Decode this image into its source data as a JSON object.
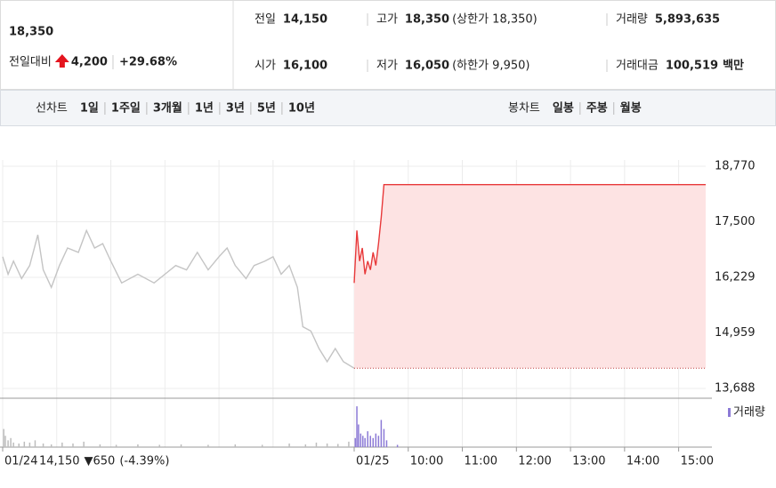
{
  "quote": {
    "price": "18,350",
    "change_label": "전일대비",
    "change": "4,200",
    "rate": "+29.68%",
    "rows": [
      [
        {
          "label": "전일",
          "value": "14,150"
        },
        {
          "label": "고가",
          "value": "18,350",
          "note": "(상한가 18,350)",
          "color": "#e4141e"
        },
        {
          "label": "거래량",
          "value": "5,893,635"
        }
      ],
      [
        {
          "label": "시가",
          "value": "16,100",
          "color": "#e4141e"
        },
        {
          "label": "저가",
          "value": "16,050",
          "note": "(하한가 9,950)",
          "color": "#e4141e"
        },
        {
          "label": "거래대금",
          "value": "100,519",
          "unit": "백만"
        }
      ]
    ]
  },
  "toolbar": {
    "line_label": "선차트",
    "line_options": [
      "1일",
      "1주일",
      "3개월",
      "1년",
      "3년",
      "5년",
      "10년"
    ],
    "active": 0,
    "candle_label": "봉차트",
    "candle_options": [
      "일봉",
      "주봉",
      "월봉"
    ]
  },
  "chart_data": {
    "type": "line",
    "xlim": [
      0,
      13
    ],
    "xticks": [
      {
        "value": 0,
        "label": "01/24"
      },
      {
        "value": 6.5,
        "label": "01/25"
      },
      {
        "value": 7.5,
        "label": "10:00"
      },
      {
        "value": 8.5,
        "label": "11:00"
      },
      {
        "value": 9.5,
        "label": "12:00"
      },
      {
        "value": 10.5,
        "label": "13:00"
      },
      {
        "value": 11.5,
        "label": "14:00"
      },
      {
        "value": 12.5,
        "label": "15:00"
      }
    ],
    "xgrid": [
      1,
      2,
      3,
      4,
      5
    ],
    "ylim": [
      13688,
      18770
    ],
    "yticks": [
      {
        "value": 18770,
        "label": "18,770"
      },
      {
        "value": 17500,
        "label": "17,500"
      },
      {
        "value": 16229,
        "label": "16,229"
      },
      {
        "value": 14959,
        "label": "14,959"
      },
      {
        "value": 13688,
        "label": "13,688"
      }
    ],
    "grid": true,
    "baseline": 14150,
    "series": [
      {
        "color": "#c4c4c4",
        "x": [
          0,
          0.1,
          0.2,
          0.35,
          0.5,
          0.65,
          0.75,
          0.9,
          1.05,
          1.2,
          1.4,
          1.55,
          1.7,
          1.85,
          2.0,
          2.2,
          2.5,
          2.8,
          3.0,
          3.2,
          3.4,
          3.6,
          3.8,
          4.0,
          4.15,
          4.3,
          4.5,
          4.65,
          4.85,
          5.0,
          5.15,
          5.3,
          5.45,
          5.55,
          5.7,
          5.85,
          6.0,
          6.15,
          6.3,
          6.5
        ],
        "values": [
          16700,
          16300,
          16600,
          16200,
          16500,
          17200,
          16400,
          16000,
          16500,
          16900,
          16800,
          17300,
          16900,
          17000,
          16600,
          16100,
          16300,
          16100,
          16300,
          16500,
          16400,
          16800,
          16400,
          16700,
          16900,
          16500,
          16200,
          16500,
          16600,
          16700,
          16300,
          16500,
          16000,
          15100,
          15000,
          14600,
          14300,
          14600,
          14300,
          14150
        ]
      },
      {
        "color": "#e8393a",
        "fill": "#fde3e3",
        "x": [
          6.5,
          6.55,
          6.6,
          6.65,
          6.7,
          6.75,
          6.8,
          6.85,
          6.9,
          6.95,
          7.0,
          7.05,
          13.0
        ],
        "values": [
          16100,
          17300,
          16600,
          16900,
          16300,
          16600,
          16400,
          16800,
          16500,
          17000,
          17600,
          18350,
          18350
        ]
      }
    ],
    "volume": {
      "name": "거래량",
      "ylim": [
        0,
        100
      ],
      "series": [
        {
          "color": "#bdbdbd",
          "x": [
            0.02,
            0.05,
            0.1,
            0.15,
            0.2,
            0.3,
            0.4,
            0.5,
            0.6,
            0.75,
            0.9,
            1.1,
            1.3,
            1.5,
            1.8,
            2.1,
            2.5,
            2.9,
            3.3,
            3.8,
            4.3,
            4.8,
            5.3,
            5.6,
            5.8,
            6.0,
            6.2,
            6.4
          ],
          "values": [
            40,
            25,
            15,
            20,
            10,
            8,
            12,
            10,
            15,
            8,
            6,
            10,
            8,
            12,
            6,
            5,
            6,
            5,
            6,
            5,
            6,
            5,
            8,
            6,
            10,
            8,
            7,
            12
          ]
        },
        {
          "color": "#8c7ad6",
          "x": [
            6.52,
            6.55,
            6.58,
            6.62,
            6.66,
            6.7,
            6.75,
            6.8,
            6.85,
            6.9,
            6.95,
            7.0,
            7.05,
            7.1,
            7.3
          ],
          "values": [
            20,
            90,
            50,
            30,
            25,
            20,
            35,
            25,
            20,
            30,
            25,
            60,
            40,
            15,
            5
          ]
        }
      ]
    },
    "prev_summary": {
      "close": "14,150",
      "change": "▼650",
      "rate": "(-4.39%)",
      "color": "#2b5fc3"
    }
  }
}
